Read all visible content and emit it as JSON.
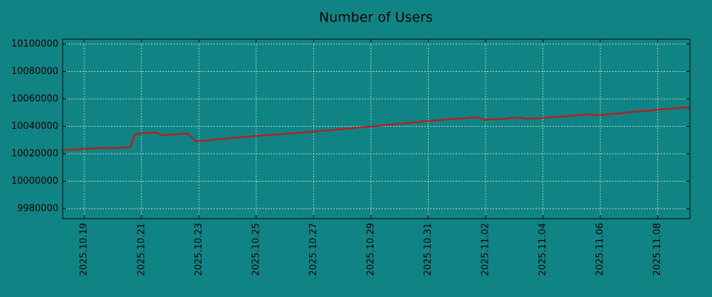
{
  "chart_data": {
    "type": "line",
    "title": "Number of Users",
    "x": [
      "2025-10-18 06:00",
      "2025-10-19 00:00",
      "2025-10-19 12:00",
      "2025-10-20 00:00",
      "2025-10-20 12:00",
      "2025-10-20 15:00",
      "2025-10-20 18:00",
      "2025-10-21 00:00",
      "2025-10-21 12:00",
      "2025-10-21 18:00",
      "2025-10-22 00:00",
      "2025-10-22 12:00",
      "2025-10-22 15:00",
      "2025-10-22 21:00",
      "2025-10-23 00:00",
      "2025-10-25 00:00",
      "2025-10-27 00:00",
      "2025-10-29 00:00",
      "2025-10-31 00:00",
      "2025-11-01 18:00",
      "2025-11-01 22:00",
      "2025-11-02 12:00",
      "2025-11-03 00:00",
      "2025-11-03 12:00",
      "2025-11-04 12:00",
      "2025-11-05 12:00",
      "2025-11-06 00:00",
      "2025-11-07 00:00",
      "2025-11-08 00:00",
      "2025-11-09 00:00",
      "2025-11-09 03:00"
    ],
    "series": [
      {
        "name": "Number of Users",
        "color": "#b22222",
        "values": [
          10022600,
          10023600,
          10024300,
          10024200,
          10024600,
          10025500,
          10034000,
          10035000,
          10035600,
          10033500,
          10034000,
          10034700,
          10034500,
          10029300,
          10029300,
          10033000,
          10036100,
          10039900,
          10043900,
          10046700,
          10044900,
          10045200,
          10046400,
          10045500,
          10046800,
          10048700,
          10048100,
          10050300,
          10052200,
          10053800,
          10053600
        ]
      }
    ],
    "xlim": [
      "2025-10-18 06:00",
      "2025-11-09 03:00"
    ],
    "xticks": [
      {
        "value": "2025-10-19 00:00",
        "label": "2025.10.19"
      },
      {
        "value": "2025-10-21 00:00",
        "label": "2025.10.21"
      },
      {
        "value": "2025-10-23 00:00",
        "label": "2025.10.23"
      },
      {
        "value": "2025-10-25 00:00",
        "label": "2025.10.25"
      },
      {
        "value": "2025-10-27 00:00",
        "label": "2025.10.27"
      },
      {
        "value": "2025-10-29 00:00",
        "label": "2025.10.29"
      },
      {
        "value": "2025-10-31 00:00",
        "label": "2025.10.31"
      },
      {
        "value": "2025-11-02 00:00",
        "label": "2025.11.02"
      },
      {
        "value": "2025-11-04 00:00",
        "label": "2025.11.04"
      },
      {
        "value": "2025-11-06 00:00",
        "label": "2025.11.06"
      },
      {
        "value": "2025-11-08 00:00",
        "label": "2025.11.08"
      }
    ],
    "ylim": [
      9972700,
      10103600
    ],
    "yticks": [
      9980000,
      10000000,
      10020000,
      10040000,
      10060000,
      10080000,
      10100000
    ],
    "grid": true
  }
}
